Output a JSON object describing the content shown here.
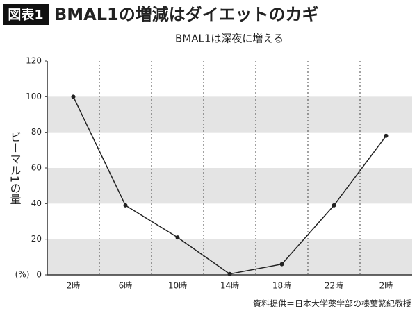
{
  "header": {
    "badge": "図表1",
    "title": "BMAL1の増減はダイエットのカギ"
  },
  "chart_data": {
    "type": "line",
    "title": "BMAL1は深夜に増える",
    "y_label": "ビーマル1の量",
    "y_unit": "(%)",
    "categories": [
      "2時",
      "6時",
      "10時",
      "14時",
      "18時",
      "22時",
      "2時"
    ],
    "values": [
      100,
      39,
      21,
      0.5,
      6,
      39,
      78
    ],
    "color": "#222",
    "ylim": [
      0,
      120
    ],
    "yticks": [
      0,
      20,
      40,
      60,
      80,
      100,
      120
    ],
    "stripes": true
  },
  "source": "資料提供＝日本大学薬学部の榛葉繁紀教授"
}
